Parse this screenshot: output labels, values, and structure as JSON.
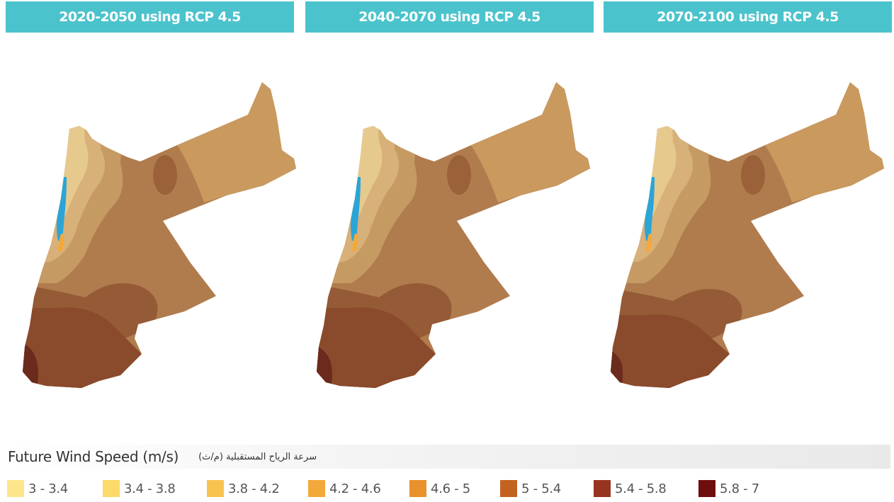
{
  "panels": [
    {
      "title": "2020-2050 using RCP 4.5"
    },
    {
      "title": "2040-2070 using RCP 4.5"
    },
    {
      "title": "2070-2100 using RCP 4.5"
    }
  ],
  "colors": {
    "header_bg": "#4bc3cc",
    "water": "#2aa5d8"
  },
  "legend": {
    "title": "Future Wind Speed (m/s)",
    "title_ar": "سرعة الرياح المستقبلية (م/ث)",
    "classes": [
      {
        "label": "3 - 3.4",
        "color": "#fde68a"
      },
      {
        "label": "3.4 - 3.8",
        "color": "#fbd96a"
      },
      {
        "label": "3.8 - 4.2",
        "color": "#f8c44f"
      },
      {
        "label": "4.2 - 4.6",
        "color": "#f2a93a"
      },
      {
        "label": "4.6 - 5",
        "color": "#e8922d"
      },
      {
        "label": "5 - 5.4",
        "color": "#c3631f"
      },
      {
        "label": "5.4 - 5.8",
        "color": "#96341f"
      },
      {
        "label": "5.8 - 7",
        "color": "#6e0e0e"
      }
    ]
  }
}
